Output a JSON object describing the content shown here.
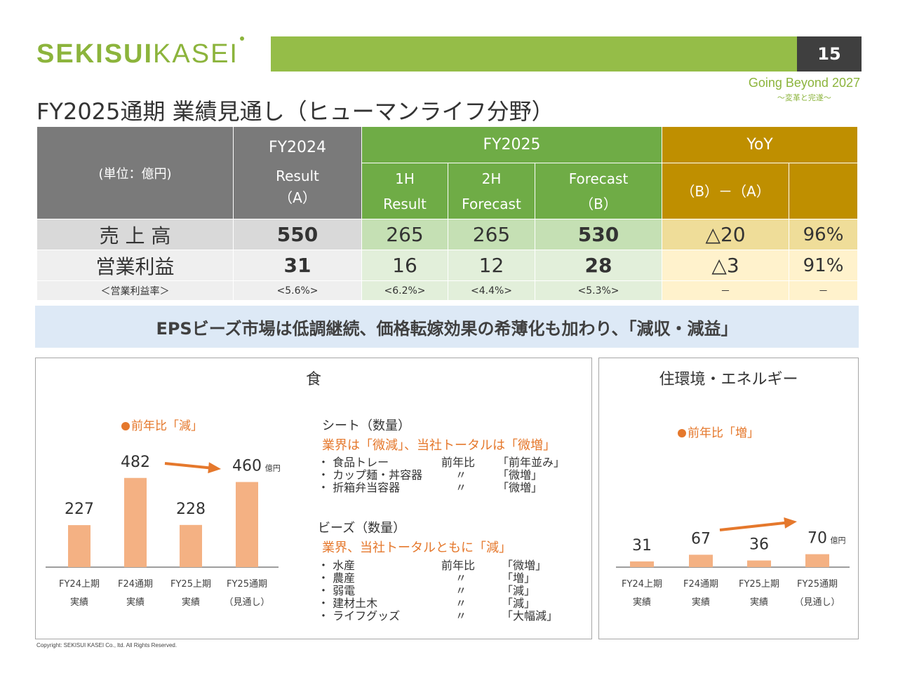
{
  "brand": {
    "bold": "SEKISUI",
    "light": "KASEI"
  },
  "page_number": "15",
  "slogan": {
    "main": "Going Beyond 2027",
    "sub": "～変革と完遂～"
  },
  "title": "FY2025通期 業績見通し（ヒューマンライフ分野）",
  "table": {
    "unit_label": "(単位：億円)",
    "fy2024": "FY2024",
    "fy2024_sub1": "Result",
    "fy2024_sub2": "（A）",
    "fy2025": "FY2025",
    "h1_1": "1H",
    "h1_2": "Result",
    "h2_1": "2H",
    "h2_2": "Forecast",
    "fc_1": "Forecast",
    "fc_2": "（B）",
    "yoy": "YoY",
    "yoy_sub": "（B）－（A）",
    "rows": [
      {
        "label": "売 上 高",
        "a": "550",
        "h1": "265",
        "h2": "265",
        "b": "530",
        "diff": "△20",
        "pct": "96%"
      },
      {
        "label": "営業利益",
        "a": "31",
        "h1": "16",
        "h2": "12",
        "b": "28",
        "diff": "△3",
        "pct": "91%"
      },
      {
        "label": "＜営業利益率＞",
        "a": "<5.6%>",
        "h1": "<6.2%>",
        "h2": "<4.4%>",
        "b": "<5.3%>",
        "diff": "－",
        "pct": "－"
      }
    ]
  },
  "banner": "EPSビーズ市場は低調継続、価格転嫁効果の希薄化も加わり、「減収・減益」",
  "food": {
    "title": "食",
    "note": "前年比「減」",
    "unit": "億円",
    "sheet_head": "シート（数量）",
    "sheet_sub": "業界は「微減」、当社トータルは「微増」",
    "sheet_items": [
      {
        "name": "・ 食品トレー",
        "mid": "前年比",
        "val": "「前年並み」"
      },
      {
        "name": "・ カップ麺・丼容器",
        "mid": "〃",
        "val": "「微増」"
      },
      {
        "name": "・ 折箱弁当容器",
        "mid": "〃",
        "val": "「微増」"
      }
    ],
    "beads_head": "ビーズ（数量）",
    "beads_sub": "業界、当社トータルともに「減」",
    "beads_items": [
      {
        "name": "・ 水産",
        "mid": "前年比",
        "val": "「微増」"
      },
      {
        "name": "・ 農産",
        "mid": "〃",
        "val": "「増」"
      },
      {
        "name": "・ 弱電",
        "mid": "〃",
        "val": "「減」"
      },
      {
        "name": "・ 建材土木",
        "mid": "〃",
        "val": "「減」"
      },
      {
        "name": "・ ライフグッズ",
        "mid": "〃",
        "val": "「大幅減」"
      }
    ]
  },
  "house": {
    "title": "住環境・エネルギー",
    "note": "前年比「増」",
    "unit": "億円"
  },
  "chart_data": [
    {
      "type": "bar",
      "categories": [
        "FY24上期",
        "F24通期",
        "FY25上期",
        "FY25通期"
      ],
      "category_sub": [
        "実績",
        "実績",
        "実績",
        "（見通し）"
      ],
      "values": [
        227,
        482,
        228,
        460
      ],
      "labels": [
        "227",
        "482",
        "228",
        "460"
      ],
      "unit": "億円",
      "color": "#f4b183",
      "ylim": [
        0,
        500
      ]
    },
    {
      "type": "bar",
      "categories": [
        "FY24上期",
        "F24通期",
        "FY25上期",
        "FY25通期"
      ],
      "category_sub": [
        "実績",
        "実績",
        "実績",
        "（見通し）"
      ],
      "values": [
        31,
        67,
        36,
        70
      ],
      "labels": [
        "31",
        "67",
        "36",
        "70"
      ],
      "unit": "億円",
      "color": "#f4b183",
      "ylim": [
        0,
        500
      ]
    }
  ],
  "colors": {
    "brand_green": "#8cb43c",
    "accent_orange": "#e5782c",
    "bar": "#f4b183"
  },
  "copyright": "Copyright: SEKISUI KASEI Co., ltd. All Rights Reserved."
}
